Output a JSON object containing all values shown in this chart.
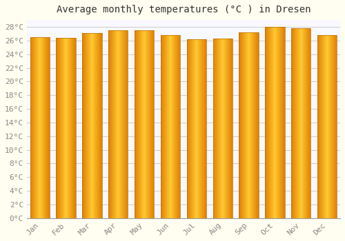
{
  "title": "Average monthly temperatures (°C ) in Dresen",
  "months": [
    "Jan",
    "Feb",
    "Mar",
    "Apr",
    "May",
    "Jun",
    "Jul",
    "Aug",
    "Sep",
    "Oct",
    "Nov",
    "Dec"
  ],
  "values": [
    26.5,
    26.4,
    27.1,
    27.5,
    27.5,
    26.8,
    26.2,
    26.3,
    27.2,
    28.0,
    27.8,
    26.8
  ],
  "bar_color_center": "#FFD966",
  "bar_color_edge": "#E08000",
  "background_color": "#FFFEF0",
  "plot_bg_color": "#F8F8FF",
  "grid_color": "#CCCCCC",
  "ylim": [
    0,
    29
  ],
  "yticks": [
    0,
    2,
    4,
    6,
    8,
    10,
    12,
    14,
    16,
    18,
    20,
    22,
    24,
    26,
    28
  ],
  "title_fontsize": 10,
  "tick_fontsize": 8,
  "tick_font_family": "monospace"
}
